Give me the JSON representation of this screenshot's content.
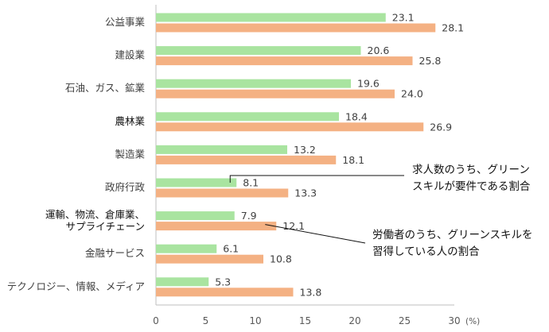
{
  "chart_data": {
    "type": "bar",
    "orientation": "horizontal",
    "categories": [
      [
        "公益事業"
      ],
      [
        "建設業"
      ],
      [
        "石油、ガス、鉱業"
      ],
      [
        "農林業"
      ],
      [
        "製造業"
      ],
      [
        "政府行政"
      ],
      [
        "運輸、物流、倉庫業、",
        "サプライチェーン"
      ],
      [
        "金融サービス"
      ],
      [
        "テクノロジー、情報、メディア"
      ]
    ],
    "series": [
      {
        "name": "求人数のうち、グリーンスキルが要件である割合",
        "color": "#a9e4a0",
        "values": [
          23.1,
          20.6,
          19.6,
          18.4,
          13.2,
          8.1,
          7.9,
          6.1,
          5.3
        ]
      },
      {
        "name": "労働者のうち、グリーンスキルを習得している人の割合",
        "color": "#f4b183",
        "values": [
          28.1,
          25.8,
          24.0,
          26.9,
          18.1,
          13.3,
          12.1,
          10.8,
          13.8
        ]
      }
    ],
    "xlim": [
      0,
      30
    ],
    "xticks": [
      0,
      5,
      10,
      15,
      20,
      25,
      30
    ],
    "unit_label": "(%)",
    "legend_style": "callouts",
    "callouts": [
      {
        "series_index": 0,
        "lines": [
          "求人数のうち、グリーン",
          "スキルが要件である割合"
        ]
      },
      {
        "series_index": 1,
        "lines": [
          "労働者のうち、グリーンスキルを",
          "習得している人の割合"
        ]
      }
    ]
  }
}
